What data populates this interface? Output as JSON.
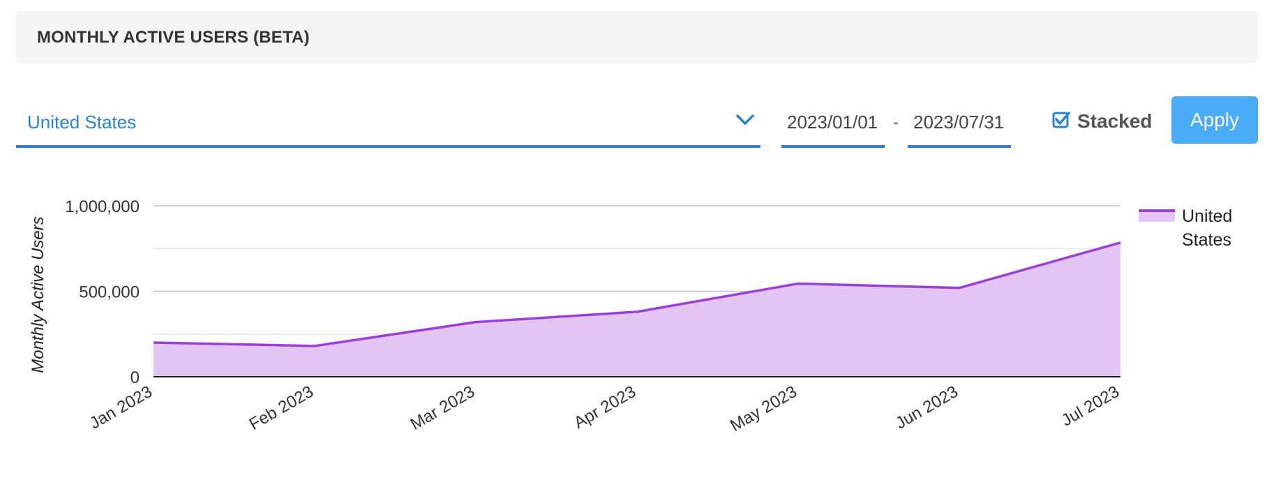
{
  "header": {
    "title": "MONTHLY ACTIVE USERS (BETA)"
  },
  "filters": {
    "country": {
      "value": "United States",
      "icon": "chevron-down-icon"
    },
    "date_from": "2023/01/01",
    "date_separator": "-",
    "date_to": "2023/07/31",
    "stacked": {
      "label": "Stacked",
      "checked": true,
      "icon": "checkbox-checked-icon"
    },
    "apply_label": "Apply"
  },
  "colors": {
    "accent": "#2a82cc",
    "button": "#4aacf6",
    "series_line": "#9b3fdc",
    "series_fill": "#e2c5f2"
  },
  "chart_data": {
    "type": "area",
    "stacked": true,
    "title": "",
    "xlabel": "",
    "ylabel": "Monthly Active Users",
    "categories": [
      "Jan 2023",
      "Feb 2023",
      "Mar 2023",
      "Apr 2023",
      "May 2023",
      "Jun 2023",
      "Jul 2023"
    ],
    "yticks": [
      "0",
      "500,000",
      "1,000,000"
    ],
    "ylim": [
      0,
      1000000
    ],
    "grid": true,
    "legend_position": "right",
    "series": [
      {
        "name": "United States",
        "values": [
          200000,
          180000,
          320000,
          380000,
          545000,
          520000,
          785000
        ]
      }
    ]
  }
}
